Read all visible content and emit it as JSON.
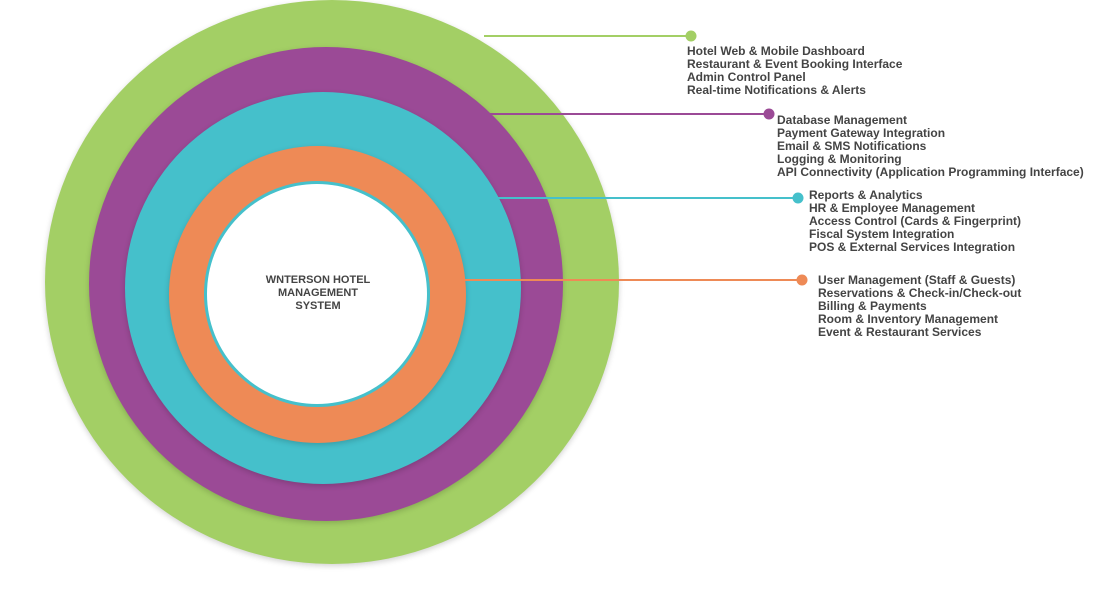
{
  "center": {
    "title": "WNTERSON HOTEL\nMANAGEMENT\nSYSTEM",
    "fill": "#ffffff",
    "border": "#45c0cb"
  },
  "layers": [
    {
      "color": "#a3cf65",
      "items": [
        "Hotel Web & Mobile Dashboard",
        "Restaurant & Event Booking Interface",
        "Admin Control Panel",
        "Real-time Notifications & Alerts"
      ]
    },
    {
      "color": "#9b4a96",
      "items": [
        "Database Management",
        "Payment Gateway Integration",
        "Email & SMS Notifications",
        "Logging & Monitoring",
        "API Connectivity (Application Programming Interface)"
      ]
    },
    {
      "color": "#45c0cb",
      "items": [
        "Reports & Analytics",
        "HR & Employee Management",
        "Access Control (Cards & Fingerprint)",
        "Fiscal System Integration",
        "POS & External Services Integration"
      ]
    },
    {
      "color": "#ee8a56",
      "items": [
        "User Management (Staff & Guests)",
        "Reservations & Check-in/Check-out",
        "Billing & Payments",
        "Room & Inventory Management",
        "Event & Restaurant Services"
      ]
    }
  ]
}
